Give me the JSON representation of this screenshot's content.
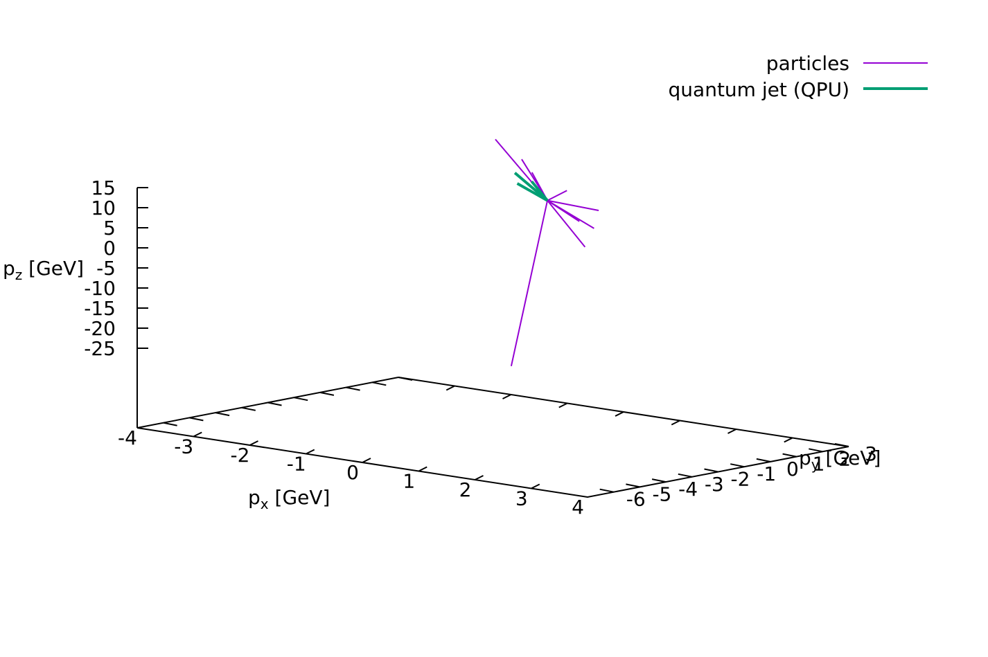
{
  "chart_data": {
    "type": "line",
    "projection": "3d",
    "xlabel": {
      "base": "p",
      "sub": "x",
      "unit": " [GeV]"
    },
    "ylabel": {
      "base": "p",
      "sub": "y",
      "unit": " [GeV]"
    },
    "zlabel": {
      "base": "p",
      "sub": "z",
      "unit": " [GeV]"
    },
    "xlim": [
      -4,
      4
    ],
    "ylim": [
      -7,
      3
    ],
    "zlim": [
      -25,
      15
    ],
    "x_ticks": [
      "-4",
      "-3",
      "-2",
      "-1",
      "0",
      "1",
      "2",
      "3",
      "4"
    ],
    "y_ticks": [
      "-6",
      "-5",
      "-4",
      "-3",
      "-2",
      "-1",
      "0",
      "1",
      "2",
      "3"
    ],
    "z_ticks": [
      "15",
      "10",
      "5",
      "0",
      "-5",
      "-10",
      "-15",
      "-20",
      "-25"
    ],
    "grid": false,
    "legend": "top-right",
    "series": [
      {
        "name": "particles",
        "color": "#9400d3",
        "width": 2,
        "segments": [
          [
            [
              -0.1,
              0.3,
              11.0
            ],
            [
              -0.05,
              -1.8,
              29.0
            ]
          ],
          [
            [
              -0.1,
              0.3,
              11.0
            ],
            [
              -0.0,
              -0.9,
              23.0
            ]
          ],
          [
            [
              -0.1,
              0.3,
              11.0
            ],
            [
              -0.05,
              -0.4,
              19.0
            ]
          ],
          [
            [
              -0.1,
              0.3,
              11.0
            ],
            [
              0.2,
              0.4,
              14.0
            ]
          ],
          [
            [
              -0.1,
              0.3,
              11.0
            ],
            [
              0.3,
              1.4,
              8.0
            ]
          ],
          [
            [
              -0.1,
              0.3,
              11.0
            ],
            [
              0.05,
              1.2,
              5.0
            ]
          ],
          [
            [
              -0.1,
              0.3,
              11.0
            ],
            [
              0.45,
              0.9,
              4.5
            ]
          ],
          [
            [
              -0.1,
              0.3,
              11.0
            ],
            [
              0.8,
              -0.2,
              2.0
            ]
          ],
          [
            [
              -0.1,
              0.3,
              11.0
            ],
            [
              0.0,
              -1.3,
              -28.0
            ]
          ]
        ]
      },
      {
        "name": "quantum jet (QPU)",
        "color": "#009e73",
        "width": 4,
        "segments": [
          [
            [
              -0.1,
              0.3,
              11.0
            ],
            [
              -0.4,
              -0.3,
              18.0
            ]
          ],
          [
            [
              -0.1,
              0.3,
              11.0
            ],
            [
              -0.45,
              -0.1,
              15.0
            ]
          ],
          [
            [
              -0.1,
              0.3,
              11.0
            ],
            [
              -0.1,
              -0.3,
              16.5
            ]
          ]
        ]
      }
    ]
  }
}
